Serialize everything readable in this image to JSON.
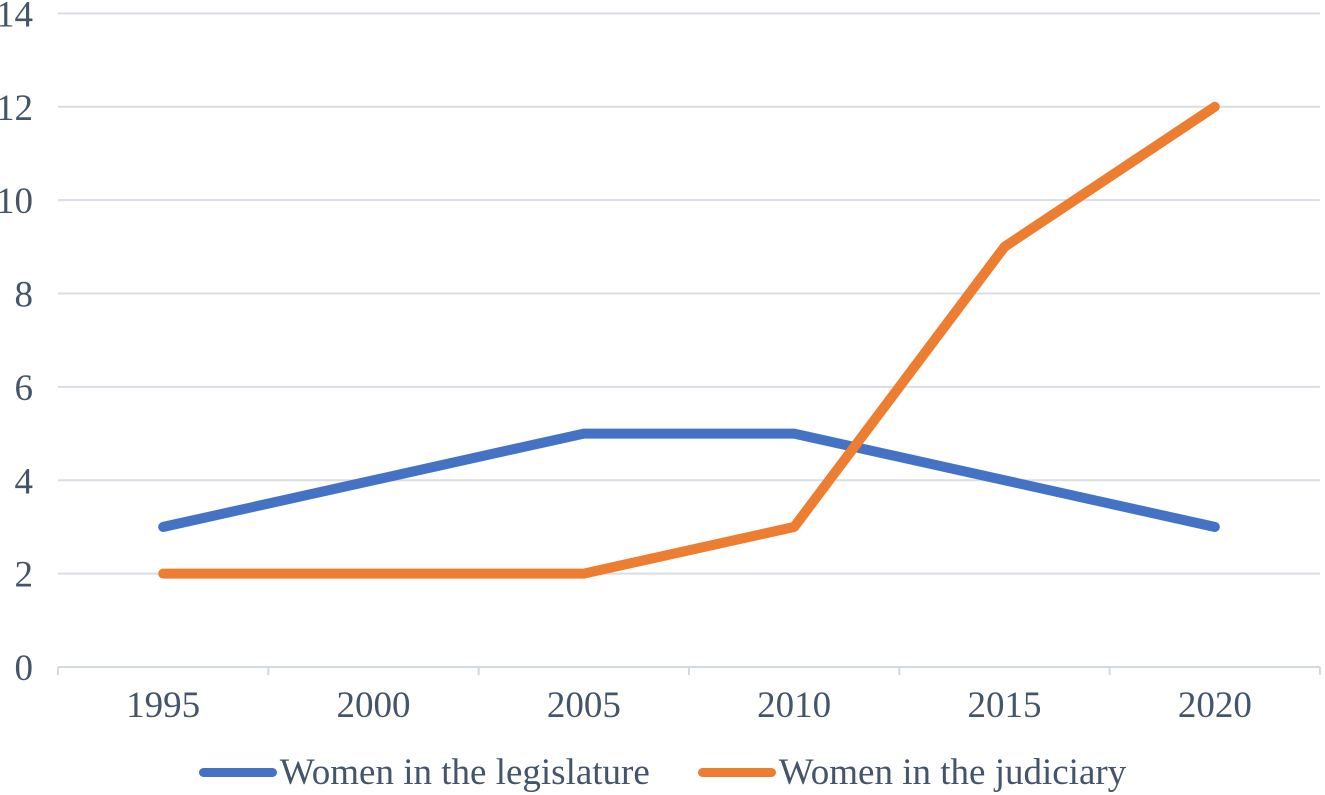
{
  "chart_data": {
    "type": "line",
    "title": "",
    "xlabel": "",
    "ylabel": "",
    "categories": [
      "1995",
      "2000",
      "2005",
      "2010",
      "2015",
      "2020"
    ],
    "series": [
      {
        "name": "Women in the legislature",
        "values": [
          3,
          4,
          5,
          5,
          4,
          3
        ],
        "color": "#4472C4"
      },
      {
        "name": "Women in the judiciary",
        "values": [
          2,
          2,
          2,
          3,
          9,
          12
        ],
        "color": "#ED7D31"
      }
    ],
    "ylim": [
      0,
      14
    ],
    "yticks": [
      0,
      2,
      4,
      6,
      8,
      10,
      12,
      14
    ],
    "grid": true,
    "legend_position": "bottom",
    "colors": {
      "tick_label": "#44546A",
      "gridline": "#D9DDE5",
      "axis": "#D2D9E3",
      "background": "#FFFFFF"
    }
  }
}
